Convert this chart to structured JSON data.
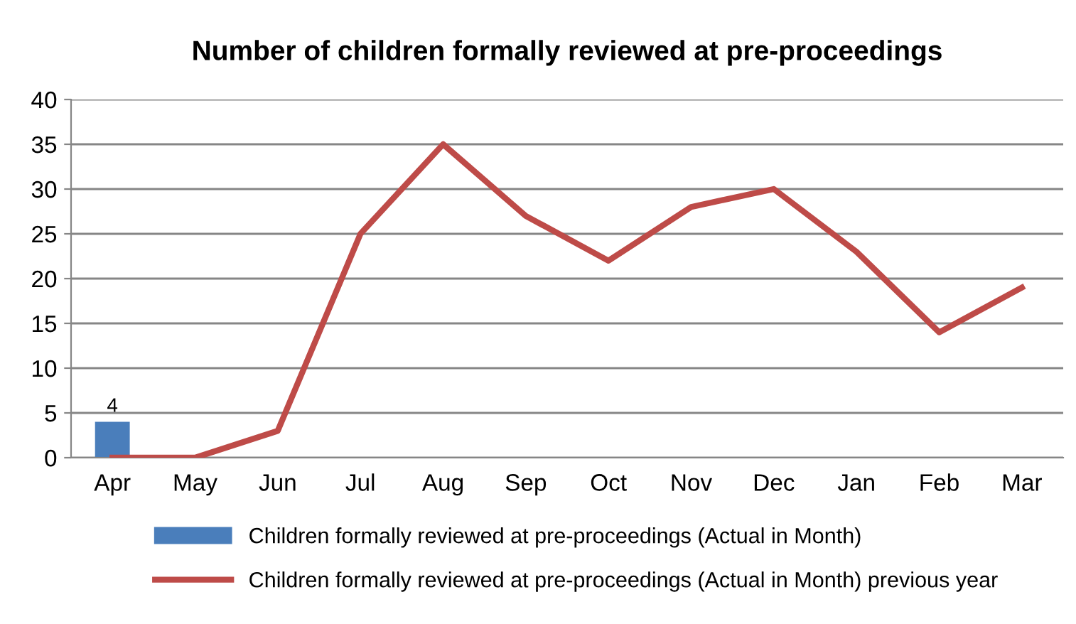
{
  "chart_data": {
    "type": "bar",
    "title": "Number of children formally reviewed at pre-proceedings",
    "categories": [
      "Apr",
      "May",
      "Jun",
      "Jul",
      "Aug",
      "Sep",
      "Oct",
      "Nov",
      "Dec",
      "Jan",
      "Feb",
      "Mar"
    ],
    "series": [
      {
        "name": "Children formally reviewed at pre-proceedings (Actual in Month)",
        "color": "#4a7ebb",
        "values": [
          4,
          null,
          null,
          null,
          null,
          null,
          null,
          null,
          null,
          null,
          null,
          null
        ],
        "value_labels": [
          "4",
          null,
          null,
          null,
          null,
          null,
          null,
          null,
          null,
          null,
          null,
          null
        ]
      },
      {
        "name": "Children formally reviewed at pre-proceedings (Actual in Month) previous year",
        "type": "line",
        "color": "#be4b48",
        "values": [
          0,
          0,
          3,
          25,
          35,
          27,
          22,
          28,
          30,
          23,
          14,
          19
        ]
      }
    ],
    "ylim": [
      0,
      40
    ],
    "yticks": [
      0,
      5,
      10,
      15,
      20,
      25,
      30,
      35,
      40
    ],
    "grid": "y",
    "legend": "bottom",
    "marker": "none",
    "line_style": "solid"
  }
}
